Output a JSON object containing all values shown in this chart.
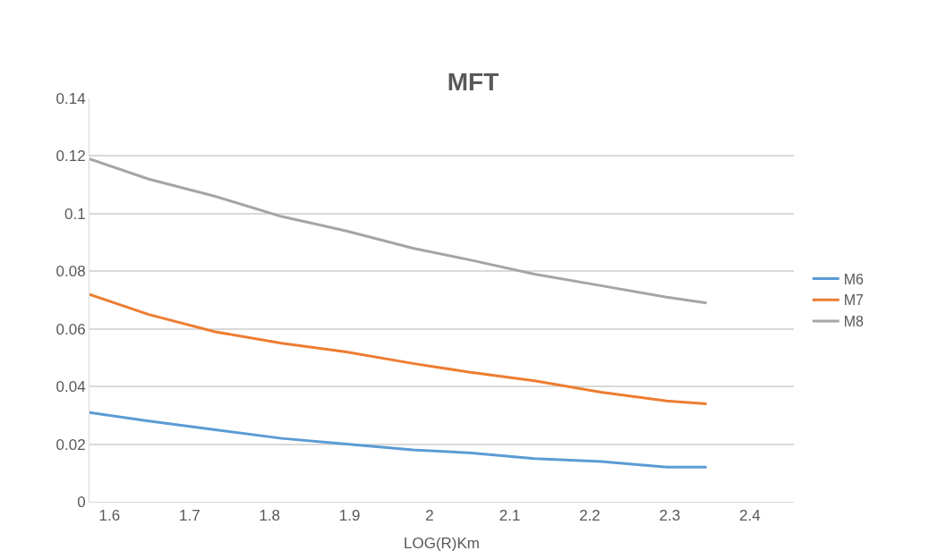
{
  "chart_data": {
    "type": "line",
    "title": "MFT",
    "xlabel": "LOG(R)Km",
    "x": [
      1.575,
      1.649,
      1.732,
      1.815,
      1.896,
      1.979,
      2.049,
      2.131,
      2.214,
      2.296,
      2.346
    ],
    "series": [
      {
        "name": "M6",
        "color": "#5b9bd5",
        "values": [
          0.031,
          0.028,
          0.025,
          0.022,
          0.02,
          0.018,
          0.017,
          0.015,
          0.014,
          0.012,
          0.012
        ]
      },
      {
        "name": "M7",
        "color": "#ed7d31",
        "values": [
          0.072,
          0.065,
          0.059,
          0.055,
          0.052,
          0.048,
          0.045,
          0.042,
          0.038,
          0.035,
          0.034
        ]
      },
      {
        "name": "M8",
        "color": "#a5a5a5",
        "values": [
          0.119,
          0.112,
          0.106,
          0.099,
          0.094,
          0.088,
          0.084,
          0.079,
          0.075,
          0.071,
          0.069
        ]
      }
    ],
    "xlim": [
      1.575,
      2.455
    ],
    "xticks": [
      1.6,
      1.7,
      1.8,
      1.9,
      2,
      2.1,
      2.2,
      2.3,
      2.4
    ],
    "ylim": [
      0,
      0.14
    ],
    "yticks": [
      0,
      0.02,
      0.04,
      0.06,
      0.08,
      0.1,
      0.12,
      0.14
    ],
    "grid": "y",
    "legend": "right",
    "marker": "none",
    "line_style": "solid"
  }
}
